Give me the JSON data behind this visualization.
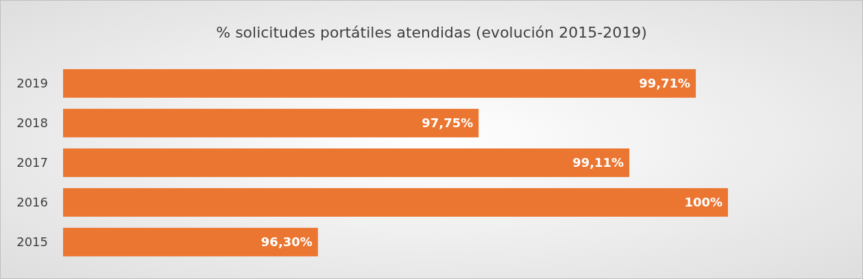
{
  "chart_data": {
    "type": "bar",
    "orientation": "horizontal",
    "title": "%  solicitudes portátiles atendidas (evolución 2015-2019)",
    "categories": [
      "2019",
      "2018",
      "2017",
      "2016",
      "2015"
    ],
    "values": [
      99.71,
      97.75,
      99.11,
      100,
      96.3
    ],
    "value_labels": [
      "99,71%",
      "97,75%",
      "99,11%",
      "100%",
      "96,30%"
    ],
    "color": "#eb7631",
    "xlim": [
      94,
      100
    ],
    "tick_labels": "y"
  }
}
